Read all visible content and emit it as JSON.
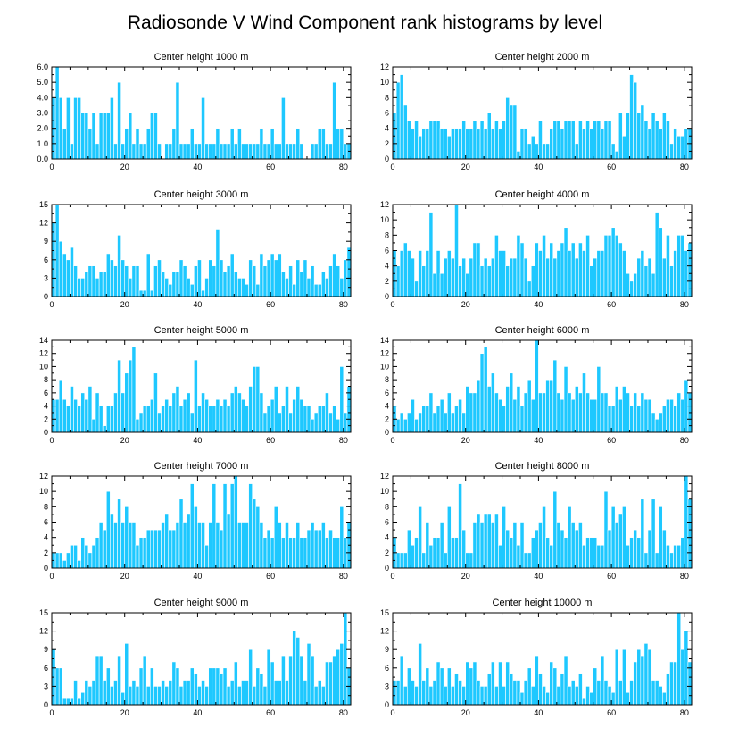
{
  "title": "Radiosonde V Wind Component rank histograms by level",
  "colors": {
    "bar": "#1ec8ff",
    "bar_edge": "#ffffff",
    "axis": "#000000"
  },
  "chart_data": [
    {
      "type": "bar",
      "title": "Center height 1000 m",
      "xlim": [
        0,
        82
      ],
      "ylim": [
        0,
        6
      ],
      "yticks": [
        "0.0",
        "1.0",
        "2.0",
        "3.0",
        "4.0",
        "5.0",
        "6.0"
      ],
      "xticks": [
        "0",
        "20",
        "40",
        "60",
        "80"
      ],
      "values": [
        4,
        6,
        4,
        2,
        4,
        1,
        4,
        4,
        3,
        3,
        2,
        3,
        1,
        3,
        3,
        3,
        4,
        1,
        5,
        1,
        2,
        3,
        1,
        2,
        1,
        1,
        2,
        3,
        3,
        1,
        0,
        1,
        1,
        2,
        5,
        1,
        1,
        1,
        2,
        1,
        1,
        4,
        1,
        1,
        1,
        2,
        1,
        1,
        1,
        2,
        1,
        2,
        1,
        1,
        1,
        1,
        1,
        2,
        1,
        1,
        2,
        1,
        1,
        4,
        1,
        1,
        1,
        2,
        1,
        0,
        0,
        1,
        1,
        2,
        2,
        1,
        1,
        5,
        2,
        2,
        1,
        1
      ]
    },
    {
      "type": "bar",
      "title": "Center height 2000 m",
      "xlim": [
        0,
        82
      ],
      "ylim": [
        0,
        12
      ],
      "yticks": [
        "0",
        "2",
        "4",
        "6",
        "8",
        "10",
        "12"
      ],
      "xticks": [
        "0",
        "20",
        "40",
        "60",
        "80"
      ],
      "values": [
        6,
        10,
        11,
        7,
        5,
        4,
        5,
        3,
        4,
        4,
        5,
        5,
        5,
        4,
        4,
        3,
        4,
        4,
        4,
        5,
        4,
        4,
        5,
        4,
        5,
        4,
        6,
        4,
        5,
        4,
        5,
        8,
        7,
        7,
        1,
        4,
        4,
        2,
        3,
        2,
        5,
        2,
        2,
        4,
        5,
        5,
        4,
        5,
        5,
        5,
        2,
        5,
        4,
        5,
        4,
        5,
        5,
        4,
        5,
        5,
        2,
        1,
        6,
        3,
        6,
        11,
        10,
        6,
        7,
        5,
        4,
        6,
        5,
        4,
        6,
        5,
        2,
        4,
        3,
        3,
        4,
        4
      ]
    },
    {
      "type": "bar",
      "title": "Center height 3000 m",
      "xlim": [
        0,
        82
      ],
      "ylim": [
        0,
        15
      ],
      "yticks": [
        "0",
        "3",
        "6",
        "9",
        "12",
        "15"
      ],
      "xticks": [
        "0",
        "20",
        "40",
        "60",
        "80"
      ],
      "values": [
        12,
        15,
        9,
        7,
        6,
        8,
        5,
        3,
        3,
        4,
        5,
        5,
        3,
        4,
        4,
        7,
        6,
        5,
        10,
        6,
        5,
        3,
        5,
        5,
        1,
        1,
        7,
        1,
        5,
        6,
        4,
        3,
        2,
        4,
        4,
        6,
        5,
        3,
        2,
        5,
        6,
        1,
        3,
        6,
        5,
        11,
        6,
        4,
        5,
        7,
        4,
        3,
        3,
        2,
        6,
        5,
        2,
        7,
        5,
        6,
        7,
        6,
        7,
        4,
        3,
        5,
        2,
        6,
        4,
        6,
        3,
        5,
        2,
        2,
        4,
        3,
        5,
        7,
        5,
        3,
        6,
        8
      ]
    },
    {
      "type": "bar",
      "title": "Center height 4000 m",
      "xlim": [
        0,
        82
      ],
      "ylim": [
        0,
        12
      ],
      "yticks": [
        "0",
        "2",
        "4",
        "6",
        "8",
        "10",
        "12"
      ],
      "xticks": [
        "0",
        "20",
        "40",
        "60",
        "80"
      ],
      "values": [
        6,
        4,
        6,
        7,
        6,
        5,
        2,
        6,
        4,
        6,
        11,
        3,
        6,
        3,
        5,
        6,
        5,
        12,
        4,
        5,
        3,
        5,
        7,
        7,
        4,
        5,
        4,
        5,
        8,
        6,
        6,
        4,
        5,
        5,
        8,
        7,
        5,
        2,
        4,
        7,
        6,
        8,
        5,
        7,
        5,
        6,
        7,
        9,
        6,
        7,
        5,
        7,
        6,
        8,
        4,
        5,
        6,
        6,
        8,
        8,
        9,
        8,
        7,
        6,
        3,
        2,
        3,
        5,
        6,
        4,
        5,
        3,
        11,
        9,
        5,
        8,
        4,
        6,
        8,
        8,
        6,
        7
      ]
    },
    {
      "type": "bar",
      "title": "Center height 5000 m",
      "xlim": [
        0,
        82
      ],
      "ylim": [
        0,
        14
      ],
      "yticks": [
        "0",
        "2",
        "4",
        "6",
        "8",
        "10",
        "12",
        "14"
      ],
      "xticks": [
        "0",
        "20",
        "40",
        "60",
        "80"
      ],
      "values": [
        5,
        5,
        8,
        5,
        4,
        7,
        5,
        4,
        6,
        5,
        7,
        2,
        6,
        4,
        1,
        4,
        4,
        6,
        11,
        6,
        9,
        11,
        13,
        2,
        3,
        4,
        4,
        5,
        9,
        3,
        4,
        5,
        4,
        6,
        7,
        4,
        5,
        6,
        3,
        11,
        4,
        6,
        5,
        4,
        4,
        5,
        4,
        5,
        4,
        6,
        7,
        6,
        5,
        4,
        7,
        10,
        10,
        6,
        3,
        4,
        5,
        7,
        3,
        4,
        7,
        3,
        5,
        7,
        5,
        4,
        4,
        2,
        3,
        4,
        4,
        6,
        3,
        4,
        2,
        10,
        3,
        7
      ]
    },
    {
      "type": "bar",
      "title": "Center height 6000 m",
      "xlim": [
        0,
        82
      ],
      "ylim": [
        0,
        14
      ],
      "yticks": [
        "0",
        "2",
        "4",
        "6",
        "8",
        "10",
        "12",
        "14"
      ],
      "xticks": [
        "0",
        "20",
        "40",
        "60",
        "80"
      ],
      "values": [
        4,
        2,
        3,
        2,
        3,
        5,
        2,
        3,
        4,
        4,
        6,
        3,
        4,
        5,
        3,
        6,
        3,
        4,
        5,
        3,
        7,
        6,
        6,
        8,
        12,
        13,
        7,
        9,
        6,
        5,
        4,
        7,
        9,
        5,
        7,
        4,
        6,
        8,
        5,
        14,
        6,
        6,
        8,
        8,
        11,
        6,
        5,
        10,
        6,
        5,
        7,
        6,
        9,
        6,
        5,
        5,
        10,
        6,
        6,
        4,
        4,
        7,
        5,
        7,
        6,
        4,
        6,
        4,
        6,
        5,
        5,
        3,
        2,
        3,
        4,
        5,
        5,
        4,
        6,
        5,
        8,
        6
      ]
    },
    {
      "type": "bar",
      "title": "Center height 7000 m",
      "xlim": [
        0,
        82
      ],
      "ylim": [
        0,
        12
      ],
      "yticks": [
        "0",
        "2",
        "4",
        "6",
        "8",
        "10",
        "12"
      ],
      "xticks": [
        "0",
        "20",
        "40",
        "60",
        "80"
      ],
      "values": [
        2,
        2,
        2,
        1,
        2,
        3,
        3,
        1,
        4,
        3,
        2,
        3,
        4,
        6,
        5,
        10,
        7,
        6,
        9,
        6,
        8,
        6,
        6,
        3,
        4,
        4,
        5,
        5,
        5,
        5,
        6,
        7,
        5,
        5,
        6,
        9,
        6,
        7,
        11,
        8,
        6,
        6,
        3,
        6,
        11,
        6,
        5,
        11,
        7,
        11,
        12,
        6,
        6,
        6,
        11,
        9,
        8,
        6,
        4,
        5,
        4,
        8,
        6,
        4,
        6,
        4,
        4,
        6,
        4,
        4,
        5,
        6,
        5,
        5,
        6,
        4,
        5,
        4,
        4,
        8,
        4,
        6
      ]
    },
    {
      "type": "bar",
      "title": "Center height 8000 m",
      "xlim": [
        0,
        82
      ],
      "ylim": [
        0,
        12
      ],
      "yticks": [
        "0",
        "2",
        "4",
        "6",
        "8",
        "10",
        "12"
      ],
      "xticks": [
        "0",
        "20",
        "40",
        "60",
        "80"
      ],
      "values": [
        4,
        2,
        2,
        2,
        5,
        3,
        4,
        8,
        2,
        6,
        3,
        4,
        4,
        6,
        2,
        8,
        4,
        4,
        11,
        5,
        2,
        2,
        6,
        7,
        6,
        7,
        7,
        6,
        7,
        3,
        8,
        5,
        4,
        6,
        3,
        6,
        2,
        2,
        4,
        5,
        6,
        8,
        4,
        3,
        10,
        6,
        5,
        4,
        8,
        6,
        5,
        6,
        3,
        4,
        4,
        4,
        3,
        3,
        10,
        5,
        8,
        6,
        7,
        8,
        3,
        4,
        5,
        4,
        9,
        2,
        5,
        9,
        2,
        8,
        5,
        3,
        2,
        3,
        3,
        4,
        12,
        9
      ]
    },
    {
      "type": "bar",
      "title": "Center height 9000 m",
      "xlim": [
        0,
        82
      ],
      "ylim": [
        0,
        15
      ],
      "yticks": [
        "0",
        "3",
        "6",
        "9",
        "12",
        "15"
      ],
      "xticks": [
        "0",
        "20",
        "40",
        "60",
        "80"
      ],
      "values": [
        9,
        6,
        6,
        1,
        1,
        1,
        4,
        1,
        2,
        4,
        3,
        4,
        8,
        8,
        4,
        6,
        3,
        4,
        8,
        2,
        10,
        3,
        4,
        3,
        6,
        8,
        3,
        6,
        3,
        3,
        4,
        3,
        4,
        7,
        6,
        3,
        4,
        4,
        6,
        5,
        3,
        4,
        3,
        6,
        6,
        6,
        5,
        6,
        3,
        4,
        7,
        3,
        4,
        4,
        9,
        3,
        6,
        5,
        3,
        9,
        7,
        4,
        4,
        8,
        4,
        8,
        12,
        11,
        8,
        4,
        10,
        8,
        3,
        4,
        3,
        7,
        7,
        8,
        9,
        10,
        15,
        6
      ]
    },
    {
      "type": "bar",
      "title": "Center height 10000 m",
      "xlim": [
        0,
        82
      ],
      "ylim": [
        0,
        15
      ],
      "yticks": [
        "0",
        "3",
        "6",
        "9",
        "12",
        "15"
      ],
      "xticks": [
        "0",
        "20",
        "40",
        "60",
        "80"
      ],
      "values": [
        4,
        4,
        8,
        3,
        6,
        4,
        3,
        10,
        4,
        6,
        3,
        4,
        7,
        6,
        3,
        6,
        3,
        5,
        4,
        3,
        7,
        6,
        7,
        4,
        3,
        3,
        5,
        7,
        3,
        7,
        3,
        7,
        5,
        4,
        4,
        2,
        4,
        6,
        3,
        8,
        5,
        3,
        2,
        7,
        6,
        3,
        5,
        8,
        3,
        4,
        3,
        5,
        1,
        3,
        2,
        6,
        4,
        8,
        4,
        3,
        2,
        9,
        4,
        9,
        2,
        4,
        7,
        9,
        8,
        10,
        9,
        4,
        4,
        3,
        2,
        5,
        7,
        7,
        15,
        9,
        12,
        7
      ]
    }
  ]
}
